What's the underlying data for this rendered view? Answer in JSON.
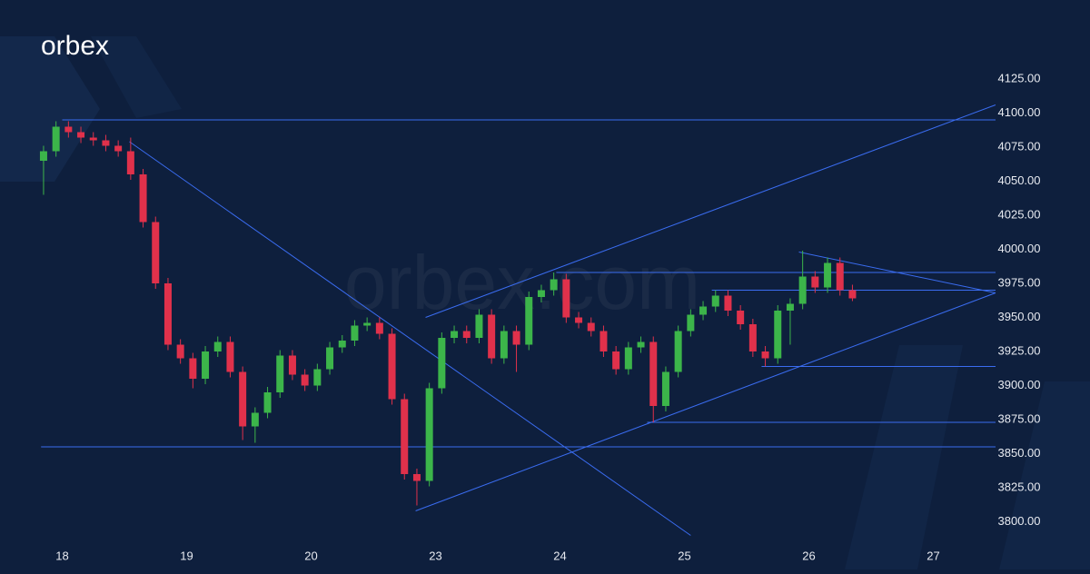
{
  "brand": {
    "logo": "orbex",
    "watermark": "orbex.com"
  },
  "chart_data": {
    "type": "candlestick",
    "up_color": "#3cb54a",
    "down_color": "#e0314b",
    "line_color": "#3a6cf0",
    "xlim": [
      -0.5,
      7.5
    ],
    "xticks": [
      {
        "value": 0,
        "label": "18"
      },
      {
        "value": 1,
        "label": "19"
      },
      {
        "value": 2,
        "label": "20"
      },
      {
        "value": 3,
        "label": "23"
      },
      {
        "value": 4,
        "label": "24"
      },
      {
        "value": 5,
        "label": "25"
      },
      {
        "value": 6,
        "label": "26"
      },
      {
        "value": 7,
        "label": "27"
      }
    ],
    "ylim": [
      3783,
      4183
    ],
    "yticks": [
      {
        "value": 4125,
        "label": "4125.00"
      },
      {
        "value": 4100,
        "label": "4100.00"
      },
      {
        "value": 4075,
        "label": "4075.00"
      },
      {
        "value": 4050,
        "label": "4050.00"
      },
      {
        "value": 4025,
        "label": "4025.00"
      },
      {
        "value": 4000,
        "label": "4000.00"
      },
      {
        "value": 3975,
        "label": "3975.00"
      },
      {
        "value": 3950,
        "label": "3950.00"
      },
      {
        "value": 3925,
        "label": "3925.00"
      },
      {
        "value": 3900,
        "label": "3900.00"
      },
      {
        "value": 3875,
        "label": "3875.00"
      },
      {
        "value": 3850,
        "label": "3850.00"
      },
      {
        "value": 3825,
        "label": "3825.00"
      },
      {
        "value": 3800,
        "label": "3800.00"
      }
    ],
    "x": [
      -0.15,
      -0.05,
      0.05,
      0.15,
      0.25,
      0.35,
      0.45,
      0.55,
      0.65,
      0.75,
      0.85,
      0.95,
      1.05,
      1.15,
      1.25,
      1.35,
      1.45,
      1.55,
      1.65,
      1.75,
      1.85,
      1.95,
      2.05,
      2.15,
      2.25,
      2.35,
      2.45,
      2.55,
      2.65,
      2.75,
      2.85,
      2.95,
      3.05,
      3.15,
      3.25,
      3.35,
      3.45,
      3.55,
      3.65,
      3.75,
      3.85,
      3.95,
      4.05,
      4.15,
      4.25,
      4.35,
      4.45,
      4.55,
      4.65,
      4.75,
      4.85,
      4.95,
      5.05,
      5.15,
      5.25,
      5.35,
      5.45,
      5.55,
      5.65,
      5.75,
      5.85,
      5.95,
      6.05,
      6.15,
      6.25,
      6.35
    ],
    "open": [
      4065,
      4072,
      4090,
      4086,
      4082,
      4080,
      4076,
      4072,
      4055,
      4020,
      3975,
      3930,
      3920,
      3905,
      3925,
      3932,
      3910,
      3870,
      3880,
      3895,
      3922,
      3908,
      3900,
      3912,
      3928,
      3933,
      3944,
      3946,
      3938,
      3890,
      3835,
      3830,
      3898,
      3935,
      3940,
      3935,
      3952,
      3920,
      3940,
      3930,
      3965,
      3970,
      3978,
      3950,
      3946,
      3940,
      3925,
      3912,
      3928,
      3932,
      3885,
      3910,
      3940,
      3952,
      3958,
      3966,
      3955,
      3945,
      3925,
      3920,
      3955,
      3960,
      3980,
      3972,
      3990,
      3970
    ],
    "high": [
      4076,
      4094,
      4094,
      4090,
      4086,
      4084,
      4080,
      4082,
      4059,
      4024,
      3979,
      3934,
      3924,
      3929,
      3936,
      3936,
      3914,
      3884,
      3899,
      3926,
      3926,
      3912,
      3916,
      3932,
      3937,
      3948,
      3950,
      3950,
      3942,
      3894,
      3839,
      3902,
      3939,
      3944,
      3944,
      3956,
      3956,
      3944,
      3944,
      3969,
      3974,
      3983,
      3982,
      3954,
      3950,
      3944,
      3929,
      3932,
      3936,
      3936,
      3914,
      3944,
      3956,
      3962,
      3970,
      3970,
      3959,
      3949,
      3929,
      3959,
      3964,
      3999,
      3984,
      3994,
      3994,
      3974
    ],
    "low": [
      4040,
      4068,
      4082,
      4078,
      4076,
      4072,
      4068,
      4051,
      4016,
      3971,
      3926,
      3916,
      3898,
      3901,
      3921,
      3906,
      3860,
      3858,
      3876,
      3891,
      3904,
      3896,
      3896,
      3908,
      3924,
      3929,
      3940,
      3934,
      3886,
      3831,
      3812,
      3826,
      3894,
      3931,
      3931,
      3931,
      3916,
      3916,
      3910,
      3926,
      3961,
      3966,
      3946,
      3942,
      3936,
      3921,
      3908,
      3908,
      3924,
      3873,
      3881,
      3906,
      3936,
      3948,
      3954,
      3951,
      3941,
      3921,
      3914,
      3916,
      3930,
      3956,
      3968,
      3968,
      3966,
      3962
    ],
    "close": [
      4072,
      4090,
      4086,
      4082,
      4080,
      4076,
      4072,
      4055,
      4020,
      3975,
      3930,
      3920,
      3905,
      3925,
      3932,
      3910,
      3870,
      3880,
      3895,
      3922,
      3908,
      3900,
      3912,
      3928,
      3933,
      3944,
      3946,
      3938,
      3890,
      3835,
      3830,
      3898,
      3935,
      3940,
      3935,
      3952,
      3920,
      3940,
      3930,
      3965,
      3970,
      3978,
      3950,
      3946,
      3940,
      3925,
      3912,
      3928,
      3932,
      3885,
      3910,
      3940,
      3952,
      3958,
      3966,
      3955,
      3945,
      3925,
      3920,
      3955,
      3960,
      3980,
      3972,
      3990,
      3970,
      3964
    ],
    "trendlines": [
      {
        "x": [
          0,
          7.5
        ],
        "y": [
          4095,
          4095
        ]
      },
      {
        "x": [
          -0.17,
          7.5
        ],
        "y": [
          3855,
          3855
        ]
      },
      {
        "x": [
          0.54,
          5.05
        ],
        "y": [
          4079,
          3790
        ]
      },
      {
        "x": [
          2.84,
          7.5
        ],
        "y": [
          3808,
          3968
        ]
      },
      {
        "x": [
          2.92,
          7.5
        ],
        "y": [
          3950,
          4106
        ]
      },
      {
        "x": [
          3.97,
          7.5
        ],
        "y": [
          3983,
          3983
        ]
      },
      {
        "x": [
          5.22,
          7.5
        ],
        "y": [
          3970,
          3970
        ]
      },
      {
        "x": [
          5.62,
          7.5
        ],
        "y": [
          3914,
          3914
        ]
      },
      {
        "x": [
          4.7,
          7.5
        ],
        "y": [
          3873,
          3873
        ]
      },
      {
        "x": [
          5.92,
          7.5
        ],
        "y": [
          3998,
          3968
        ]
      }
    ]
  }
}
